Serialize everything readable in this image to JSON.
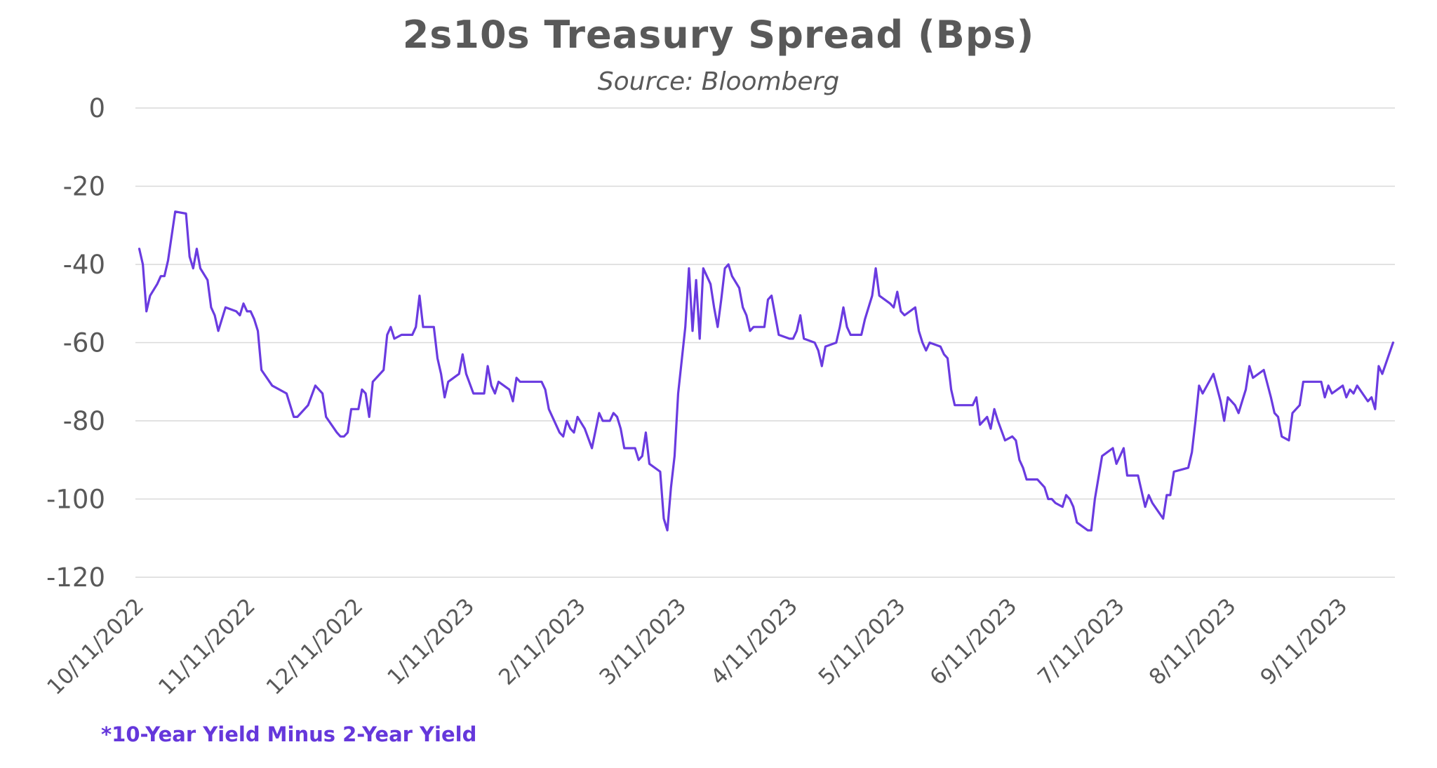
{
  "chart_data": {
    "type": "line",
    "title": "2s10s Treasury Spread (Bps)",
    "subtitle": "Source: Bloomberg",
    "footnote": "*10-Year Yield Minus 2-Year Yield",
    "xlabel": "",
    "ylabel": "",
    "ylim": [
      -120,
      0
    ],
    "yticks": [
      0,
      -20,
      -40,
      -60,
      -80,
      -100,
      -120
    ],
    "ytick_labels": [
      "0",
      "-20",
      "-40",
      "-60",
      "-80",
      "-100",
      "-120"
    ],
    "xlim": [
      "2022-10-11",
      "2023-09-25"
    ],
    "xticks": [
      "2022-10-11",
      "2022-11-11",
      "2022-12-11",
      "2023-01-11",
      "2023-02-11",
      "2023-03-11",
      "2023-04-11",
      "2023-05-11",
      "2023-06-11",
      "2023-07-11",
      "2023-08-11",
      "2023-09-11"
    ],
    "xtick_labels": [
      "10/11/2022",
      "11/11/2022",
      "12/11/2022",
      "1/11/2023",
      "2/11/2023",
      "3/11/2023",
      "4/11/2023",
      "5/11/2023",
      "6/11/2023",
      "7/11/2023",
      "8/11/2023",
      "9/11/2023"
    ],
    "grid": "horizontal",
    "legend": "none",
    "line_color": "#6a3be0",
    "grid_color": "#d9d9d9",
    "text_color": "#595959",
    "footnote_color": "#6537db",
    "series": [
      {
        "x": [
          "2022-10-11",
          "2022-10-12",
          "2022-10-13",
          "2022-10-14",
          "2022-10-16",
          "2022-10-17",
          "2022-10-18",
          "2022-10-19",
          "2022-10-21",
          "2022-10-24",
          "2022-10-25",
          "2022-10-26",
          "2022-10-27",
          "2022-10-28",
          "2022-10-30",
          "2022-10-31",
          "2022-11-01",
          "2022-11-02",
          "2022-11-04",
          "2022-11-07",
          "2022-11-08",
          "2022-11-09",
          "2022-11-10",
          "2022-11-11",
          "2022-11-12",
          "2022-11-13",
          "2022-11-14",
          "2022-11-17",
          "2022-11-21",
          "2022-11-23",
          "2022-11-24",
          "2022-11-25",
          "2022-11-27",
          "2022-11-29",
          "2022-12-01",
          "2022-12-02",
          "2022-12-05",
          "2022-12-06",
          "2022-12-07",
          "2022-12-08",
          "2022-12-09",
          "2022-12-11",
          "2022-12-12",
          "2022-12-13",
          "2022-12-14",
          "2022-12-15",
          "2022-12-18",
          "2022-12-19",
          "2022-12-20",
          "2022-12-21",
          "2022-12-23",
          "2022-12-26",
          "2022-12-27",
          "2022-12-28",
          "2022-12-29",
          "2023-01-01",
          "2023-01-02",
          "2023-01-03",
          "2023-01-04",
          "2023-01-05",
          "2023-01-08",
          "2023-01-09",
          "2023-01-10",
          "2023-01-12",
          "2023-01-15",
          "2023-01-16",
          "2023-01-17",
          "2023-01-18",
          "2023-01-19",
          "2023-01-22",
          "2023-01-23",
          "2023-01-24",
          "2023-01-25",
          "2023-01-27",
          "2023-01-29",
          "2023-01-31",
          "2023-02-01",
          "2023-02-02",
          "2023-02-05",
          "2023-02-06",
          "2023-02-07",
          "2023-02-08",
          "2023-02-09",
          "2023-02-10",
          "2023-02-12",
          "2023-02-14",
          "2023-02-16",
          "2023-02-17",
          "2023-02-19",
          "2023-02-20",
          "2023-02-21",
          "2023-02-22",
          "2023-02-23",
          "2023-02-26",
          "2023-02-27",
          "2023-02-28",
          "2023-03-01",
          "2023-03-02",
          "2023-03-05",
          "2023-03-06",
          "2023-03-07",
          "2023-03-08",
          "2023-03-09",
          "2023-03-10",
          "2023-03-12",
          "2023-03-13",
          "2023-03-14",
          "2023-03-15",
          "2023-03-16",
          "2023-03-17",
          "2023-03-19",
          "2023-03-20",
          "2023-03-21",
          "2023-03-22",
          "2023-03-23",
          "2023-03-24",
          "2023-03-25",
          "2023-03-27",
          "2023-03-28",
          "2023-03-29",
          "2023-03-30",
          "2023-03-31",
          "2023-04-03",
          "2023-04-04",
          "2023-04-05",
          "2023-04-07",
          "2023-04-10",
          "2023-04-11",
          "2023-04-12",
          "2023-04-13",
          "2023-04-14",
          "2023-04-17",
          "2023-04-18",
          "2023-04-19",
          "2023-04-20",
          "2023-04-23",
          "2023-04-24",
          "2023-04-25",
          "2023-04-26",
          "2023-04-27",
          "2023-04-30",
          "2023-05-01",
          "2023-05-03",
          "2023-05-04",
          "2023-05-05",
          "2023-05-08",
          "2023-05-09",
          "2023-05-10",
          "2023-05-11",
          "2023-05-12",
          "2023-05-15",
          "2023-05-16",
          "2023-05-17",
          "2023-05-18",
          "2023-05-19",
          "2023-05-22",
          "2023-05-23",
          "2023-05-24",
          "2023-05-25",
          "2023-05-26",
          "2023-05-30",
          "2023-05-31",
          "2023-06-01",
          "2023-06-02",
          "2023-06-03",
          "2023-06-04",
          "2023-06-05",
          "2023-06-06",
          "2023-06-07",
          "2023-06-09",
          "2023-06-11",
          "2023-06-12",
          "2023-06-13",
          "2023-06-14",
          "2023-06-15",
          "2023-06-18",
          "2023-06-20",
          "2023-06-21",
          "2023-06-22",
          "2023-06-23",
          "2023-06-25",
          "2023-06-26",
          "2023-06-27",
          "2023-06-28",
          "2023-06-29",
          "2023-07-02",
          "2023-07-03",
          "2023-07-04",
          "2023-07-06",
          "2023-07-09",
          "2023-07-10",
          "2023-07-11",
          "2023-07-12",
          "2023-07-13",
          "2023-07-16",
          "2023-07-17",
          "2023-07-18",
          "2023-07-19",
          "2023-07-20",
          "2023-07-23",
          "2023-07-24",
          "2023-07-25",
          "2023-07-26",
          "2023-07-30",
          "2023-07-31",
          "2023-08-01",
          "2023-08-02",
          "2023-08-03",
          "2023-08-06",
          "2023-08-08",
          "2023-08-09",
          "2023-08-10",
          "2023-08-12",
          "2023-08-13",
          "2023-08-14",
          "2023-08-15",
          "2023-08-16",
          "2023-08-17",
          "2023-08-20",
          "2023-08-22",
          "2023-08-23",
          "2023-08-24",
          "2023-08-25",
          "2023-08-27",
          "2023-08-28",
          "2023-08-29",
          "2023-08-30",
          "2023-08-31",
          "2023-09-05",
          "2023-09-06",
          "2023-09-07",
          "2023-09-08",
          "2023-09-11",
          "2023-09-12",
          "2023-09-13",
          "2023-09-14",
          "2023-09-15",
          "2023-09-18",
          "2023-09-19",
          "2023-09-20",
          "2023-09-21",
          "2023-09-22",
          "2023-09-25"
        ],
        "y": [
          -36,
          -40,
          -52,
          -48,
          -45,
          -43,
          -43,
          -39,
          -26.5,
          -27,
          -38,
          -41,
          -36,
          -41,
          -44,
          -51,
          -53,
          -57,
          -51,
          -52,
          -53,
          -50,
          -52,
          -52,
          -54,
          -57,
          -67,
          -71,
          -73,
          -79,
          -79,
          -78,
          -76,
          -71,
          -73,
          -79,
          -83,
          -84,
          -84,
          -83,
          -77,
          -77,
          -72,
          -73,
          -79,
          -70,
          -67,
          -58,
          -56,
          -59,
          -58,
          -58,
          -56,
          -48,
          -56,
          -56,
          -64,
          -68,
          -74,
          -70,
          -68,
          -63,
          -68,
          -73,
          -73,
          -66,
          -71,
          -73,
          -70,
          -72,
          -75,
          -69,
          -70,
          -70,
          -70,
          -70,
          -72,
          -77,
          -83,
          -84,
          -80,
          -82,
          -83,
          -79,
          -82,
          -87,
          -78,
          -80,
          -80,
          -78,
          -79,
          -82,
          -87,
          -87,
          -90,
          -89,
          -83,
          -91,
          -93,
          -105,
          -108,
          -97,
          -89,
          -73,
          -56,
          -41,
          -57,
          -44,
          -59,
          -41,
          -45,
          -51,
          -56,
          -49,
          -41,
          -40,
          -43,
          -46,
          -51,
          -53,
          -57,
          -56,
          -56,
          -49,
          -48,
          -58,
          -59,
          -59,
          -57,
          -53,
          -59,
          -60,
          -62,
          -66,
          -61,
          -60,
          -56,
          -51,
          -56,
          -58,
          -58,
          -54,
          -48,
          -41,
          -48,
          -50,
          -51,
          -47,
          -52,
          -53,
          -51,
          -57,
          -60,
          -62,
          -60,
          -61,
          -63,
          -64,
          -72,
          -76,
          -76,
          -76,
          -74,
          -81,
          -80,
          -79,
          -82,
          -77,
          -80,
          -85,
          -84,
          -85,
          -90,
          -92,
          -95,
          -95,
          -97,
          -100,
          -100,
          -101,
          -102,
          -99,
          -100,
          -102,
          -106,
          -108,
          -108,
          -100,
          -89,
          -87,
          -91,
          -89,
          -87,
          -94,
          -94,
          -98,
          -102,
          -99,
          -101,
          -105,
          -99,
          -99,
          -93,
          -92,
          -88,
          -80,
          -71,
          -73,
          -68,
          -75,
          -80,
          -74,
          -76,
          -78,
          -75,
          -72,
          -66,
          -69,
          -67,
          -74,
          -78,
          -79,
          -84,
          -85,
          -78,
          -77,
          -76,
          -70,
          -70,
          -74,
          -71,
          -73,
          -71,
          -74,
          -72,
          -73,
          -71,
          -75,
          -74,
          -77,
          -66,
          -68,
          -60
        ]
      }
    ]
  }
}
